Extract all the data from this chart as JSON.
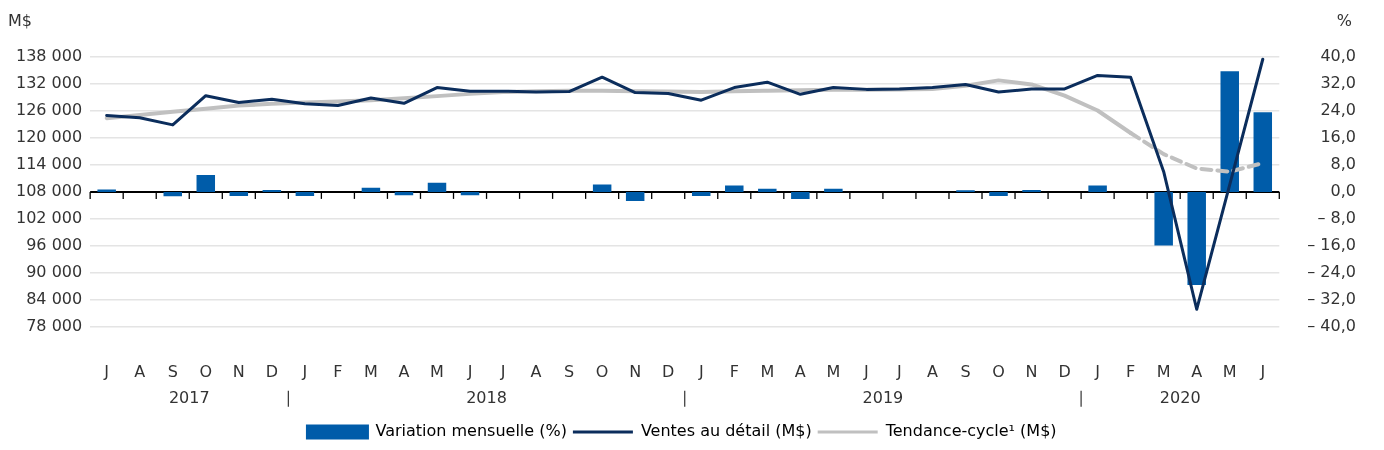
{
  "chart_data": {
    "type": "bar",
    "ylabel": "M$",
    "y2label": "%",
    "categories": [
      "J",
      "A",
      "S",
      "O",
      "N",
      "D",
      "J",
      "F",
      "M",
      "A",
      "M",
      "J",
      "J",
      "A",
      "S",
      "O",
      "N",
      "D",
      "J",
      "F",
      "M",
      "A",
      "M",
      "J",
      "J",
      "A",
      "S",
      "O",
      "N",
      "D",
      "J",
      "F",
      "M",
      "A",
      "M",
      "J"
    ],
    "annotations": [
      "2017",
      "2018",
      "2019",
      "2020"
    ],
    "series": [
      {
        "name": "Variation mensuelle (%)",
        "axis": "y2",
        "color": "#005ca9",
        "values": [
          0.7,
          0,
          -1.3,
          5.0,
          -1.2,
          0.6,
          -1.2,
          0,
          1.2,
          -1.0,
          2.7,
          -1.0,
          0,
          0,
          0,
          2.2,
          -2.7,
          0,
          -1.2,
          1.9,
          0.9,
          -2.1,
          0.9,
          0,
          0,
          0,
          0.5,
          -1.2,
          0.6,
          0,
          1.9,
          0,
          -15.9,
          -27.6,
          35.8,
          23.6
        ]
      },
      {
        "name": "Ventes au détail (M$)",
        "type": "line",
        "color": "#0b2d5c",
        "values": [
          125000,
          124500,
          122900,
          129400,
          127900,
          128600,
          127600,
          127200,
          128900,
          127700,
          131200,
          130400,
          130400,
          130200,
          130300,
          133500,
          130100,
          129900,
          128400,
          131200,
          132400,
          129700,
          131200,
          130800,
          130900,
          131200,
          131900,
          130200,
          130900,
          130900,
          133900,
          133500,
          112500,
          81900,
          109600,
          137500
        ]
      },
      {
        "name": "Tendance-cycle¹ (M$)",
        "type": "line",
        "color": "#c0c0c0",
        "values": [
          124400,
          125100,
          125800,
          126500,
          127200,
          127600,
          127900,
          128100,
          128400,
          128800,
          129300,
          129800,
          130200,
          130400,
          130500,
          130500,
          130400,
          130300,
          130200,
          130400,
          130500,
          130600,
          130700,
          130700,
          130800,
          130900,
          131600,
          132800,
          131900,
          129400,
          126100,
          121100,
          null,
          null,
          null,
          null
        ]
      },
      {
        "type": "line",
        "color": "#c0c0c0",
        "line_style": "dashed",
        "values": [
          null,
          null,
          null,
          null,
          null,
          null,
          null,
          null,
          null,
          null,
          null,
          null,
          null,
          null,
          null,
          null,
          null,
          null,
          null,
          null,
          null,
          null,
          null,
          null,
          null,
          null,
          null,
          null,
          null,
          null,
          null,
          121100,
          116400,
          113200,
          112500,
          114400
        ]
      }
    ],
    "ylim": [
      78000,
      138000
    ],
    "yticks": [
      {
        "value": 78000,
        "label": "78 000"
      },
      {
        "value": 84000,
        "label": "84 000"
      },
      {
        "value": 90000,
        "label": "90 000"
      },
      {
        "value": 96000,
        "label": "96 000"
      },
      {
        "value": 102000,
        "label": "102 000"
      },
      {
        "value": 108000,
        "label": "108 000"
      },
      {
        "value": 114000,
        "label": "114 000"
      },
      {
        "value": 120000,
        "label": "120 000"
      },
      {
        "value": 126000,
        "label": "126 000"
      },
      {
        "value": 132000,
        "label": "132 000"
      },
      {
        "value": 138000,
        "label": "138 000"
      }
    ],
    "y2lim": [
      -40,
      40
    ],
    "y2ticks": [
      {
        "value": -40,
        "label": "– 40,0"
      },
      {
        "value": -32,
        "label": "– 32,0"
      },
      {
        "value": -24,
        "label": "– 24,0"
      },
      {
        "value": -16,
        "label": "– 16,0"
      },
      {
        "value": -8,
        "label": "– 8,0"
      },
      {
        "value": 0,
        "label": "0,0"
      },
      {
        "value": 8,
        "label": "8,0"
      },
      {
        "value": 16,
        "label": "16,0"
      },
      {
        "value": 24,
        "label": "24,0"
      },
      {
        "value": 32,
        "label": "32,0"
      },
      {
        "value": 40,
        "label": "40,0"
      }
    ],
    "grid": "y",
    "legend": "bottom",
    "marker": "none"
  }
}
